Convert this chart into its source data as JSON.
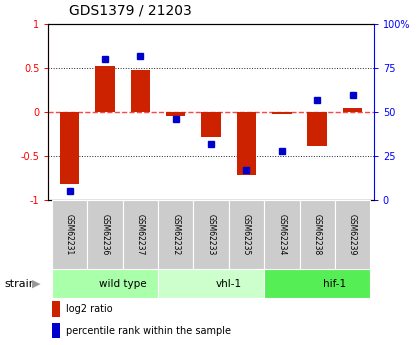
{
  "title": "GDS1379 / 21203",
  "samples": [
    "GSM62231",
    "GSM62236",
    "GSM62237",
    "GSM62232",
    "GSM62233",
    "GSM62235",
    "GSM62234",
    "GSM62238",
    "GSM62239"
  ],
  "log2_ratio": [
    -0.82,
    0.52,
    0.48,
    -0.04,
    -0.28,
    -0.72,
    -0.02,
    -0.38,
    0.05
  ],
  "percentile_rank": [
    5,
    80,
    82,
    46,
    32,
    17,
    28,
    57,
    60
  ],
  "groups": [
    {
      "label": "wild type",
      "start": 0,
      "end": 3,
      "color": "#aaffaa"
    },
    {
      "label": "vhl-1",
      "start": 3,
      "end": 6,
      "color": "#ccffcc"
    },
    {
      "label": "hif-1",
      "start": 6,
      "end": 9,
      "color": "#55ee55"
    }
  ],
  "ylim_left": [
    -1,
    1
  ],
  "ylim_right": [
    0,
    100
  ],
  "yticks_left": [
    -1,
    -0.5,
    0,
    0.5,
    1
  ],
  "yticks_right": [
    0,
    25,
    50,
    75,
    100
  ],
  "ytick_labels_left": [
    "-1",
    "-0.5",
    "0",
    "0.5",
    "1"
  ],
  "ytick_labels_right": [
    "0",
    "25",
    "50",
    "75",
    "100%"
  ],
  "bar_color": "#cc2200",
  "dot_color": "#0000cc",
  "zero_line_color": "#ff4444",
  "grid_color": "#222222",
  "bg_color": "#ffffff",
  "sample_box_color": "#cccccc",
  "strain_label": "strain",
  "arrow_char": "▶"
}
